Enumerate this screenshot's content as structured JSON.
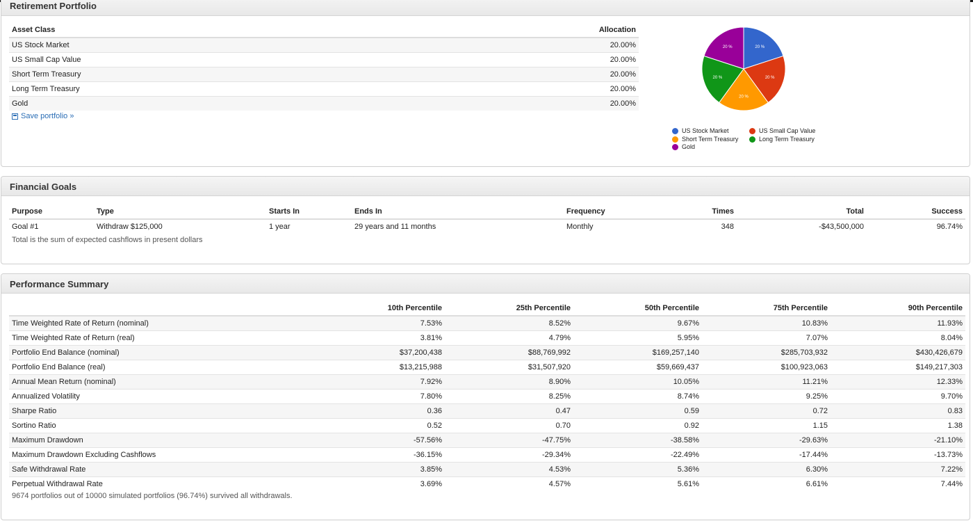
{
  "portfolio": {
    "title": "Retirement Portfolio",
    "headers": {
      "asset": "Asset Class",
      "allocation": "Allocation"
    },
    "rows": [
      {
        "asset": "US Stock Market",
        "allocation": "20.00%"
      },
      {
        "asset": "US Small Cap Value",
        "allocation": "20.00%"
      },
      {
        "asset": "Short Term Treasury",
        "allocation": "20.00%"
      },
      {
        "asset": "Long Term Treasury",
        "allocation": "20.00%"
      },
      {
        "asset": "Gold",
        "allocation": "20.00%"
      }
    ],
    "save_link": "Save portfolio »"
  },
  "chart_data": {
    "type": "pie",
    "categories": [
      "US Stock Market",
      "US Small Cap Value",
      "Short Term Treasury",
      "Long Term Treasury",
      "Gold"
    ],
    "values": [
      20,
      20,
      20,
      20,
      20
    ],
    "slice_labels": [
      "20 %",
      "20 %",
      "20 %",
      "20 %",
      "20 %"
    ],
    "colors": [
      "#3366cc",
      "#dc3912",
      "#ff9900",
      "#109618",
      "#990099"
    ],
    "legend_position": "bottom"
  },
  "goals": {
    "title": "Financial Goals",
    "headers": {
      "purpose": "Purpose",
      "type": "Type",
      "starts": "Starts In",
      "ends": "Ends In",
      "frequency": "Frequency",
      "times": "Times",
      "total": "Total",
      "success": "Success"
    },
    "rows": [
      {
        "purpose": "Goal #1",
        "type": "Withdraw $125,000",
        "starts": "1 year",
        "ends": "29 years and 11 months",
        "frequency": "Monthly",
        "times": "348",
        "total": "-$43,500,000",
        "success": "96.74%"
      }
    ],
    "note": "Total is the sum of expected cashflows in present dollars"
  },
  "performance": {
    "title": "Performance Summary",
    "headers": [
      "10th Percentile",
      "25th Percentile",
      "50th Percentile",
      "75th Percentile",
      "90th Percentile"
    ],
    "rows": [
      {
        "metric": "Time Weighted Rate of Return (nominal)",
        "values": [
          "7.53%",
          "8.52%",
          "9.67%",
          "10.83%",
          "11.93%"
        ]
      },
      {
        "metric": "Time Weighted Rate of Return (real)",
        "values": [
          "3.81%",
          "4.79%",
          "5.95%",
          "7.07%",
          "8.04%"
        ]
      },
      {
        "metric": "Portfolio End Balance (nominal)",
        "values": [
          "$37,200,438",
          "$88,769,992",
          "$169,257,140",
          "$285,703,932",
          "$430,426,679"
        ]
      },
      {
        "metric": "Portfolio End Balance (real)",
        "values": [
          "$13,215,988",
          "$31,507,920",
          "$59,669,437",
          "$100,923,063",
          "$149,217,303"
        ]
      },
      {
        "metric": "Annual Mean Return (nominal)",
        "values": [
          "7.92%",
          "8.90%",
          "10.05%",
          "11.21%",
          "12.33%"
        ]
      },
      {
        "metric": "Annualized Volatility",
        "values": [
          "7.80%",
          "8.25%",
          "8.74%",
          "9.25%",
          "9.70%"
        ]
      },
      {
        "metric": "Sharpe Ratio",
        "values": [
          "0.36",
          "0.47",
          "0.59",
          "0.72",
          "0.83"
        ]
      },
      {
        "metric": "Sortino Ratio",
        "values": [
          "0.52",
          "0.70",
          "0.92",
          "1.15",
          "1.38"
        ]
      },
      {
        "metric": "Maximum Drawdown",
        "values": [
          "-57.56%",
          "-47.75%",
          "-38.58%",
          "-29.63%",
          "-21.10%"
        ]
      },
      {
        "metric": "Maximum Drawdown Excluding Cashflows",
        "values": [
          "-36.15%",
          "-29.34%",
          "-22.49%",
          "-17.44%",
          "-13.73%"
        ]
      },
      {
        "metric": "Safe Withdrawal Rate",
        "values": [
          "3.85%",
          "4.53%",
          "5.36%",
          "6.30%",
          "7.22%"
        ]
      },
      {
        "metric": "Perpetual Withdrawal Rate",
        "values": [
          "3.69%",
          "4.57%",
          "5.61%",
          "6.61%",
          "7.44%"
        ]
      }
    ],
    "note": "9674 portfolios out of 10000 simulated portfolios (96.74%) survived all withdrawals."
  }
}
